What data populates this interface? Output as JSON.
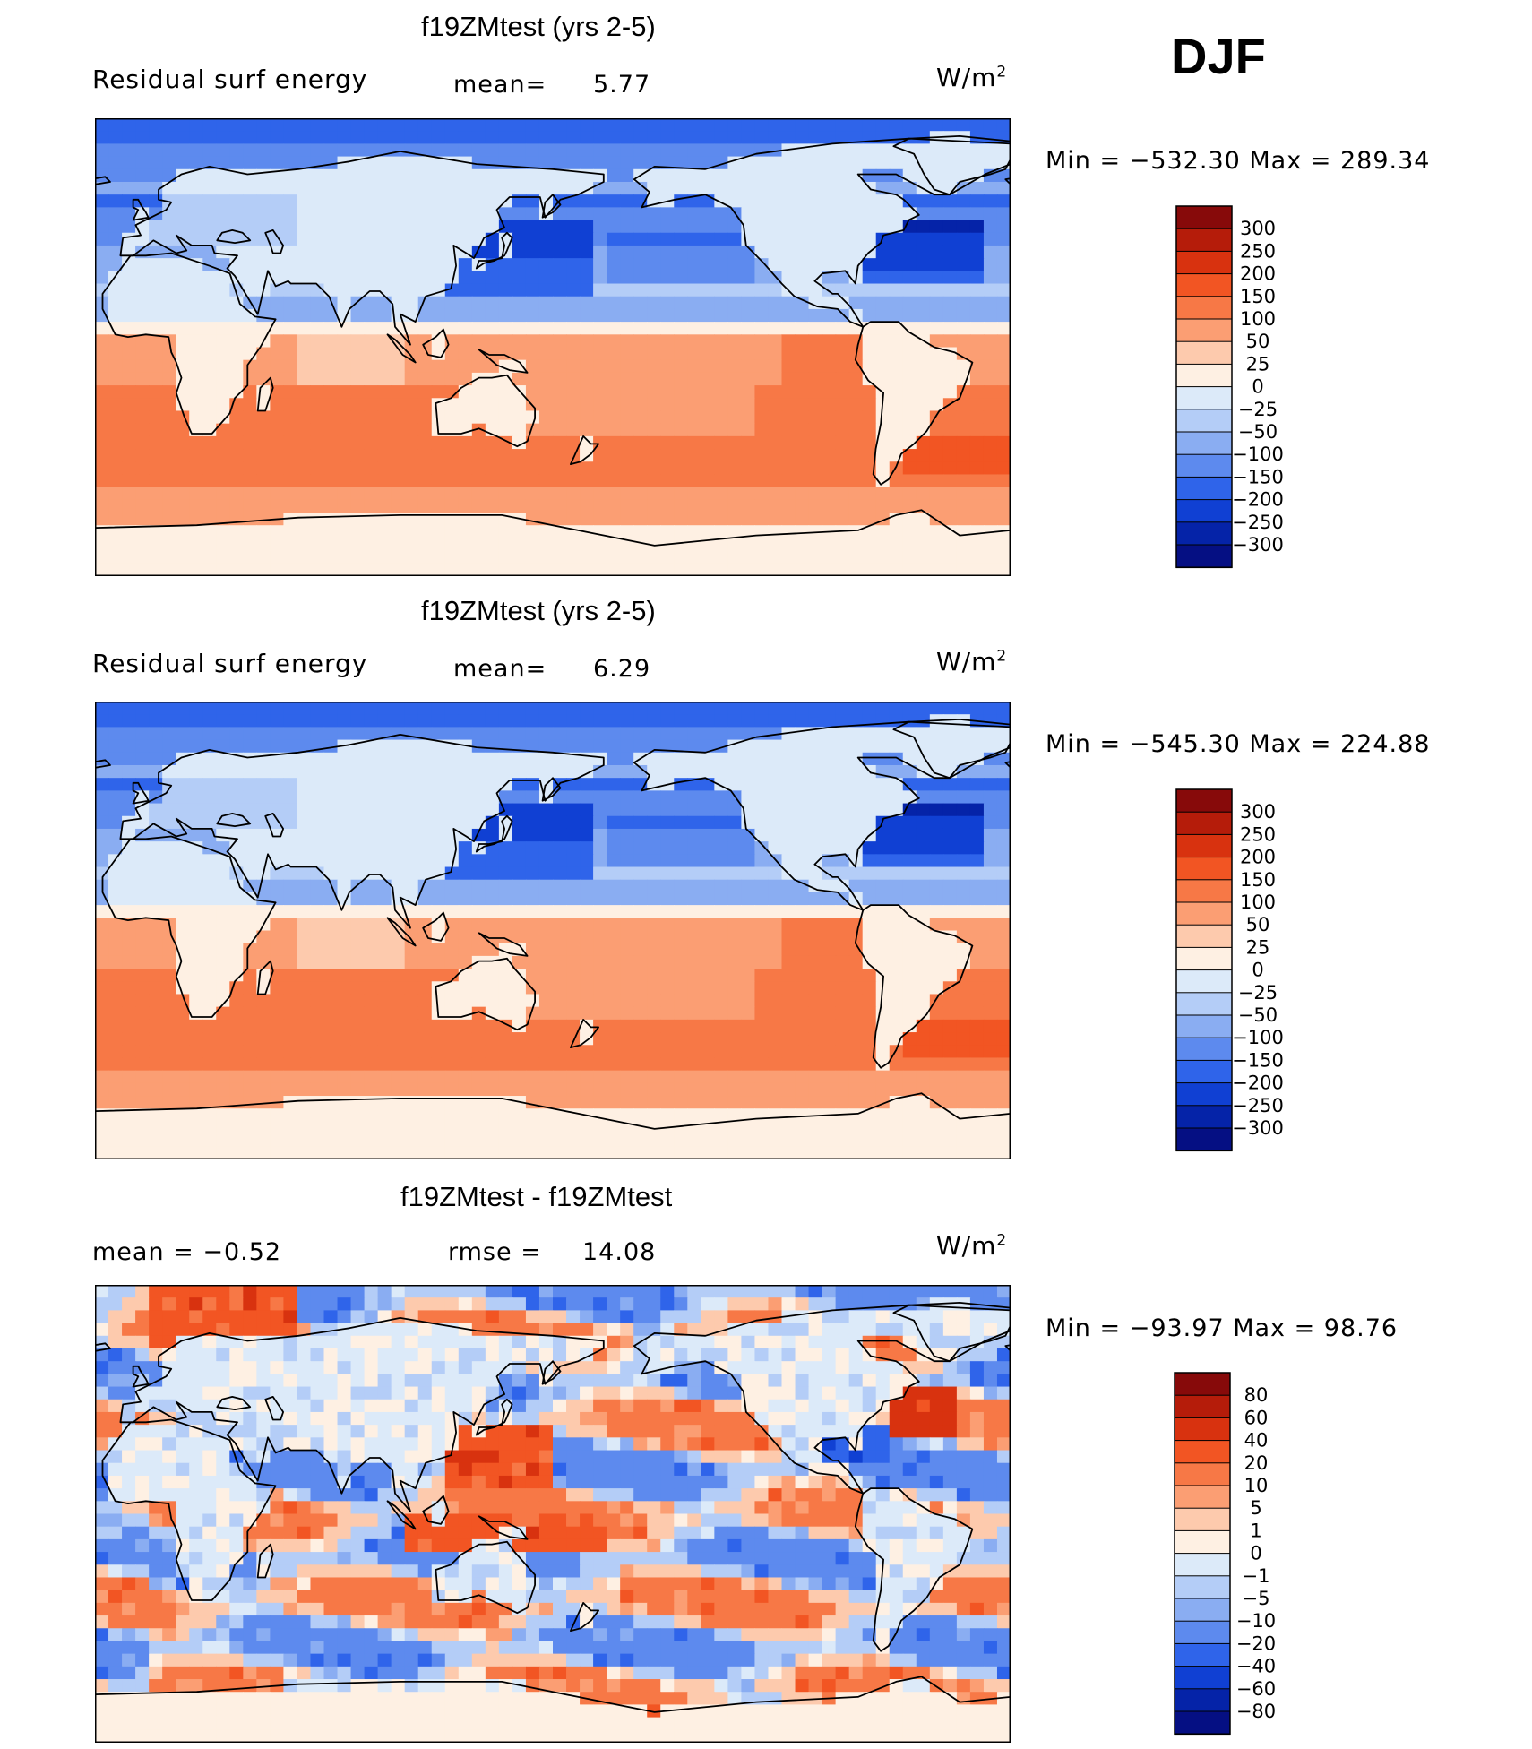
{
  "season": "DJF",
  "panels": [
    {
      "id": "panel1",
      "title": "f19ZMtest (yrs 2-5)",
      "variable": "Residual surf energy",
      "stat_left": "",
      "stat_mid_label": "mean=",
      "stat_mid_value": "5.77",
      "units": "W/m",
      "units_sup": "2",
      "minmax": "Min = −532.30 Max = 289.34",
      "levels": [
        "300",
        "250",
        "200",
        "150",
        "100",
        "50",
        "25",
        "0",
        "−25",
        "−50",
        "−100",
        "−150",
        "−200",
        "−250",
        "−300"
      ],
      "colors": [
        "#870a0a",
        "#b51c0a",
        "#d8320f",
        "#f25523",
        "#f77846",
        "#fb9e73",
        "#fdcaad",
        "#fef0e3",
        "#dceaf9",
        "#b4cdf7",
        "#8aadf2",
        "#5d8aee",
        "#2f64ea",
        "#1040d3",
        "#0523a8",
        "#050f83"
      ],
      "style": "abs"
    },
    {
      "id": "panel2",
      "title": "f19ZMtest (yrs 2-5)",
      "variable": "Residual surf energy",
      "stat_left": "",
      "stat_mid_label": "mean=",
      "stat_mid_value": "6.29",
      "units": "W/m",
      "units_sup": "2",
      "minmax": "Min = −545.30 Max = 224.88",
      "levels": [
        "300",
        "250",
        "200",
        "150",
        "100",
        "50",
        "25",
        "0",
        "−25",
        "−50",
        "−100",
        "−150",
        "−200",
        "−250",
        "−300"
      ],
      "colors": [
        "#870a0a",
        "#b51c0a",
        "#d8320f",
        "#f25523",
        "#f77846",
        "#fb9e73",
        "#fdcaad",
        "#fef0e3",
        "#dceaf9",
        "#b4cdf7",
        "#8aadf2",
        "#5d8aee",
        "#2f64ea",
        "#1040d3",
        "#0523a8",
        "#050f83"
      ],
      "style": "abs"
    },
    {
      "id": "panel3",
      "title": "f19ZMtest - f19ZMtest",
      "variable": "",
      "stat_left": "mean =   −0.52",
      "stat_mid_label": "rmse =",
      "stat_mid_value": "14.08",
      "units": "W/m",
      "units_sup": "2",
      "minmax": "Min = −93.97 Max =   98.76",
      "levels": [
        "80",
        "60",
        "40",
        "20",
        "10",
        "5",
        "1",
        "0",
        "−1",
        "−5",
        "−10",
        "−20",
        "−40",
        "−60",
        "−80"
      ],
      "colors": [
        "#870a0a",
        "#b51c0a",
        "#d8320f",
        "#f25523",
        "#f77846",
        "#fb9e73",
        "#fdcaad",
        "#fef0e3",
        "#dceaf9",
        "#b4cdf7",
        "#8aadf2",
        "#5d8aee",
        "#2f64ea",
        "#1040d3",
        "#0523a8",
        "#050f83"
      ],
      "style": "diff"
    }
  ],
  "chart_data": [
    {
      "type": "heatmap",
      "title": "f19ZMtest (yrs 2-5)",
      "subtitle": "Residual surf energy",
      "mean": 5.77,
      "min": -532.3,
      "max": 289.34,
      "units": "W/m2",
      "season": "DJF",
      "contour_levels": [
        -300,
        -250,
        -200,
        -150,
        -100,
        -50,
        -25,
        0,
        25,
        50,
        100,
        150,
        200,
        250,
        300
      ]
    },
    {
      "type": "heatmap",
      "title": "f19ZMtest (yrs 2-5)",
      "subtitle": "Residual surf energy",
      "mean": 6.29,
      "min": -545.3,
      "max": 224.88,
      "units": "W/m2",
      "season": "DJF",
      "contour_levels": [
        -300,
        -250,
        -200,
        -150,
        -100,
        -50,
        -25,
        0,
        25,
        50,
        100,
        150,
        200,
        250,
        300
      ]
    },
    {
      "type": "heatmap",
      "title": "f19ZMtest - f19ZMtest",
      "mean": -0.52,
      "rmse": 14.08,
      "min": -93.97,
      "max": 98.76,
      "units": "W/m2",
      "season": "DJF",
      "contour_levels": [
        -80,
        -60,
        -40,
        -20,
        -10,
        -5,
        -1,
        0,
        1,
        5,
        10,
        20,
        40,
        60,
        80
      ]
    }
  ]
}
